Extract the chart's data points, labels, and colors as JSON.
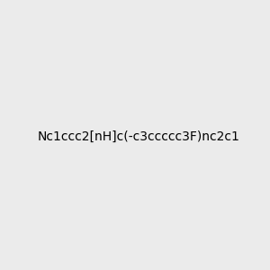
{
  "smiles": "Nc1ccc2[nH]c(-c3ccccc3F)nc2c1",
  "title": "",
  "background_color": "#ebebeb",
  "bond_color": "#000000",
  "atom_colors": {
    "N_amino": "#008080",
    "H_amino": "#008080",
    "N_ring": "#0000ff",
    "H_ring": "#0000ff",
    "F": "#ff00ff",
    "C": "#000000"
  },
  "figsize": [
    3.0,
    3.0
  ],
  "dpi": 100
}
